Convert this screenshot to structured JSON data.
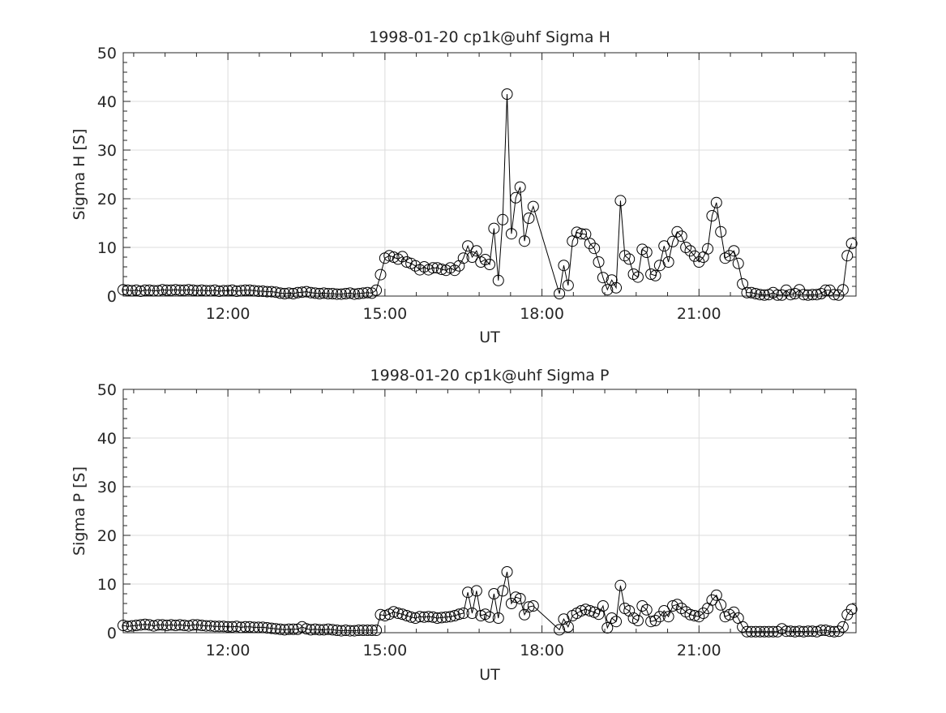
{
  "chart_data": [
    {
      "type": "line",
      "title": "1998-01-20  cp1k@uhf Sigma H",
      "xlabel": "UT",
      "ylabel": "Sigma H [S]",
      "ylim": [
        0,
        50
      ],
      "yticks": [
        "0",
        "10",
        "20",
        "30",
        "40",
        "50"
      ],
      "xlim_hours": [
        10,
        24
      ],
      "xticks": [
        {
          "hour": 12,
          "label": "12:00"
        },
        {
          "hour": 15,
          "label": "15:00"
        },
        {
          "hour": 18,
          "label": "18:00"
        },
        {
          "hour": 21,
          "label": "21:00"
        }
      ],
      "grid": true,
      "marker": "open-circle",
      "x_start_hour": 10,
      "x_step_minutes": 5,
      "values": [
        1.3,
        1.2,
        1.1,
        1.2,
        1.0,
        1.2,
        1.2,
        1.1,
        1.1,
        1.3,
        1.2,
        1.2,
        1.3,
        1.2,
        1.2,
        1.3,
        1.2,
        1.1,
        1.2,
        1.1,
        1.1,
        1.2,
        1.0,
        1.1,
        1.1,
        1.2,
        1.0,
        1.1,
        1.2,
        1.2,
        1.1,
        1.0,
        1.0,
        0.9,
        0.9,
        0.8,
        0.6,
        0.5,
        0.6,
        0.5,
        0.7,
        0.8,
        0.9,
        0.7,
        0.6,
        0.5,
        0.6,
        0.5,
        0.5,
        0.4,
        0.4,
        0.5,
        0.6,
        0.4,
        0.5,
        0.6,
        0.7,
        0.6,
        1.2,
        4.4,
        7.8,
        8.3,
        8.0,
        7.6,
        8.1,
        7.0,
        6.7,
        6.2,
        5.4,
        6.0,
        5.4,
        5.8,
        5.8,
        5.5,
        5.3,
        5.8,
        5.3,
        6.2,
        7.8,
        10.3,
        8.0,
        9.3,
        7.0,
        7.5,
        6.5,
        13.9,
        3.2,
        15.7,
        41.5,
        12.8,
        20.2,
        22.4,
        11.3,
        16.0,
        18.4,
        null,
        null,
        null,
        null,
        null,
        0.5,
        6.3,
        2.2,
        11.3,
        13.1,
        12.8,
        12.7,
        10.8,
        9.8,
        7.0,
        3.8,
        1.3,
        3.3,
        1.7,
        19.6,
        8.3,
        7.6,
        4.5,
        3.9,
        9.6,
        9.0,
        4.5,
        4.2,
        6.3,
        10.3,
        7.0,
        11.2,
        13.2,
        12.3,
        10.0,
        9.3,
        8.2,
        7.0,
        8.0,
        9.7,
        16.5,
        19.2,
        13.2,
        7.8,
        8.3,
        9.3,
        6.7,
        2.5,
        0.7,
        0.7,
        0.5,
        0.3,
        0.2,
        0.3,
        0.7,
        0.2,
        0.2,
        1.2,
        0.3,
        0.5,
        1.3,
        0.3,
        0.2,
        0.3,
        0.3,
        0.5,
        1.2,
        1.2,
        0.3,
        0.2,
        1.3,
        8.3,
        10.8
      ],
      "color": "#000000"
    },
    {
      "type": "line",
      "title": "1998-01-20  cp1k@uhf Sigma P",
      "xlabel": "UT",
      "ylabel": "Sigma P [S]",
      "ylim": [
        0,
        50
      ],
      "yticks": [
        "0",
        "10",
        "20",
        "30",
        "40",
        "50"
      ],
      "xlim_hours": [
        10,
        24
      ],
      "xticks": [
        {
          "hour": 12,
          "label": "12:00"
        },
        {
          "hour": 15,
          "label": "15:00"
        },
        {
          "hour": 18,
          "label": "18:00"
        },
        {
          "hour": 21,
          "label": "21:00"
        }
      ],
      "grid": true,
      "marker": "open-circle",
      "x_start_hour": 10,
      "x_step_minutes": 5,
      "values": [
        1.5,
        1.3,
        1.4,
        1.5,
        1.6,
        1.7,
        1.6,
        1.4,
        1.6,
        1.6,
        1.5,
        1.6,
        1.5,
        1.6,
        1.5,
        1.4,
        1.6,
        1.6,
        1.5,
        1.4,
        1.4,
        1.3,
        1.3,
        1.3,
        1.2,
        1.2,
        1.3,
        1.1,
        1.2,
        1.2,
        1.1,
        1.1,
        1.1,
        1.0,
        0.9,
        0.8,
        0.7,
        0.6,
        0.7,
        0.7,
        0.7,
        1.2,
        0.8,
        0.6,
        0.7,
        0.6,
        0.6,
        0.7,
        0.6,
        0.5,
        0.4,
        0.5,
        0.4,
        0.4,
        0.5,
        0.5,
        0.5,
        0.5,
        0.5,
        3.7,
        3.5,
        3.8,
        4.3,
        4.0,
        3.8,
        3.5,
        3.2,
        3.0,
        3.3,
        3.2,
        3.3,
        3.2,
        3.0,
        3.1,
        3.2,
        3.3,
        3.5,
        3.8,
        4.0,
        8.3,
        4.0,
        8.6,
        3.5,
        3.8,
        3.2,
        8.0,
        3.0,
        8.6,
        12.5,
        6.0,
        7.3,
        7.0,
        3.7,
        5.3,
        5.5,
        null,
        null,
        null,
        null,
        null,
        0.6,
        2.8,
        1.2,
        3.5,
        4.0,
        4.5,
        4.8,
        4.5,
        4.2,
        3.8,
        5.5,
        1.0,
        3.0,
        2.3,
        9.7,
        5.0,
        4.5,
        3.0,
        2.5,
        5.5,
        4.7,
        2.3,
        2.5,
        3.3,
        4.5,
        3.3,
        5.5,
        5.8,
        5.0,
        4.3,
        3.7,
        3.5,
        3.3,
        4.0,
        5.0,
        6.7,
        7.7,
        5.7,
        3.3,
        3.7,
        4.2,
        3.0,
        1.2,
        0.2,
        0.2,
        0.2,
        0.2,
        0.2,
        0.2,
        0.2,
        0.2,
        0.8,
        0.3,
        0.3,
        0.2,
        0.3,
        0.2,
        0.3,
        0.3,
        0.2,
        0.5,
        0.5,
        0.3,
        0.2,
        0.3,
        1.2,
        3.7,
        4.8
      ],
      "color": "#000000"
    }
  ]
}
